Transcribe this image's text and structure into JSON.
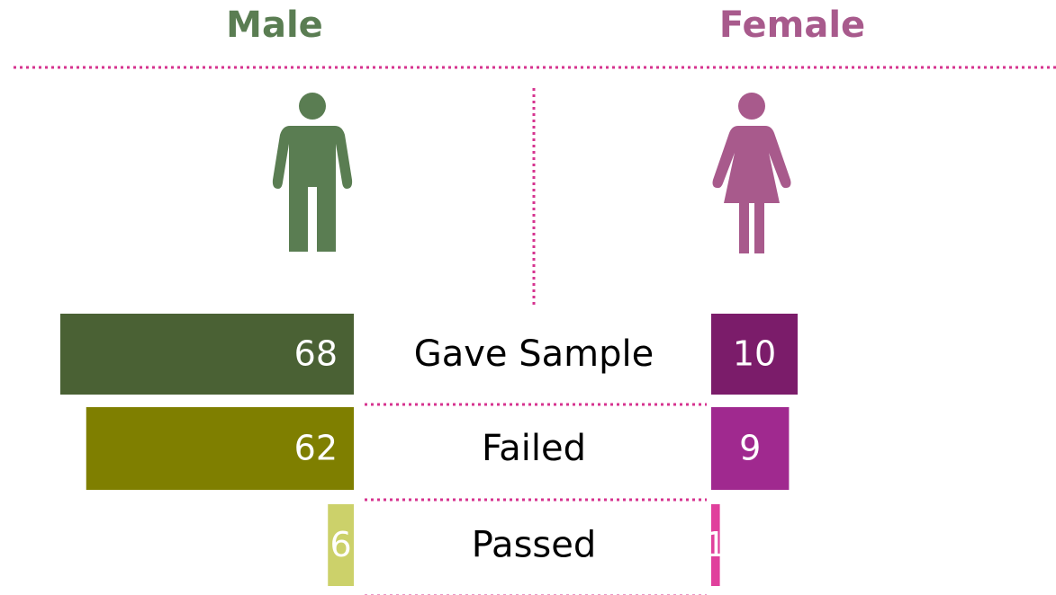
{
  "chart_data": {
    "type": "butterfly",
    "categories": [
      "Gave Sample",
      "Failed",
      "Passed"
    ],
    "series": [
      {
        "name": "Male",
        "color": "#5a7d52",
        "colors": [
          "#4a6134",
          "#7f7f00",
          "#ccd16a"
        ],
        "values": [
          68,
          62,
          6
        ]
      },
      {
        "name": "Female",
        "color": "#a85a8c",
        "colors": [
          "#7b1c6a",
          "#a0298f",
          "#e0409c"
        ],
        "values": [
          10,
          9,
          1
        ]
      }
    ]
  }
}
